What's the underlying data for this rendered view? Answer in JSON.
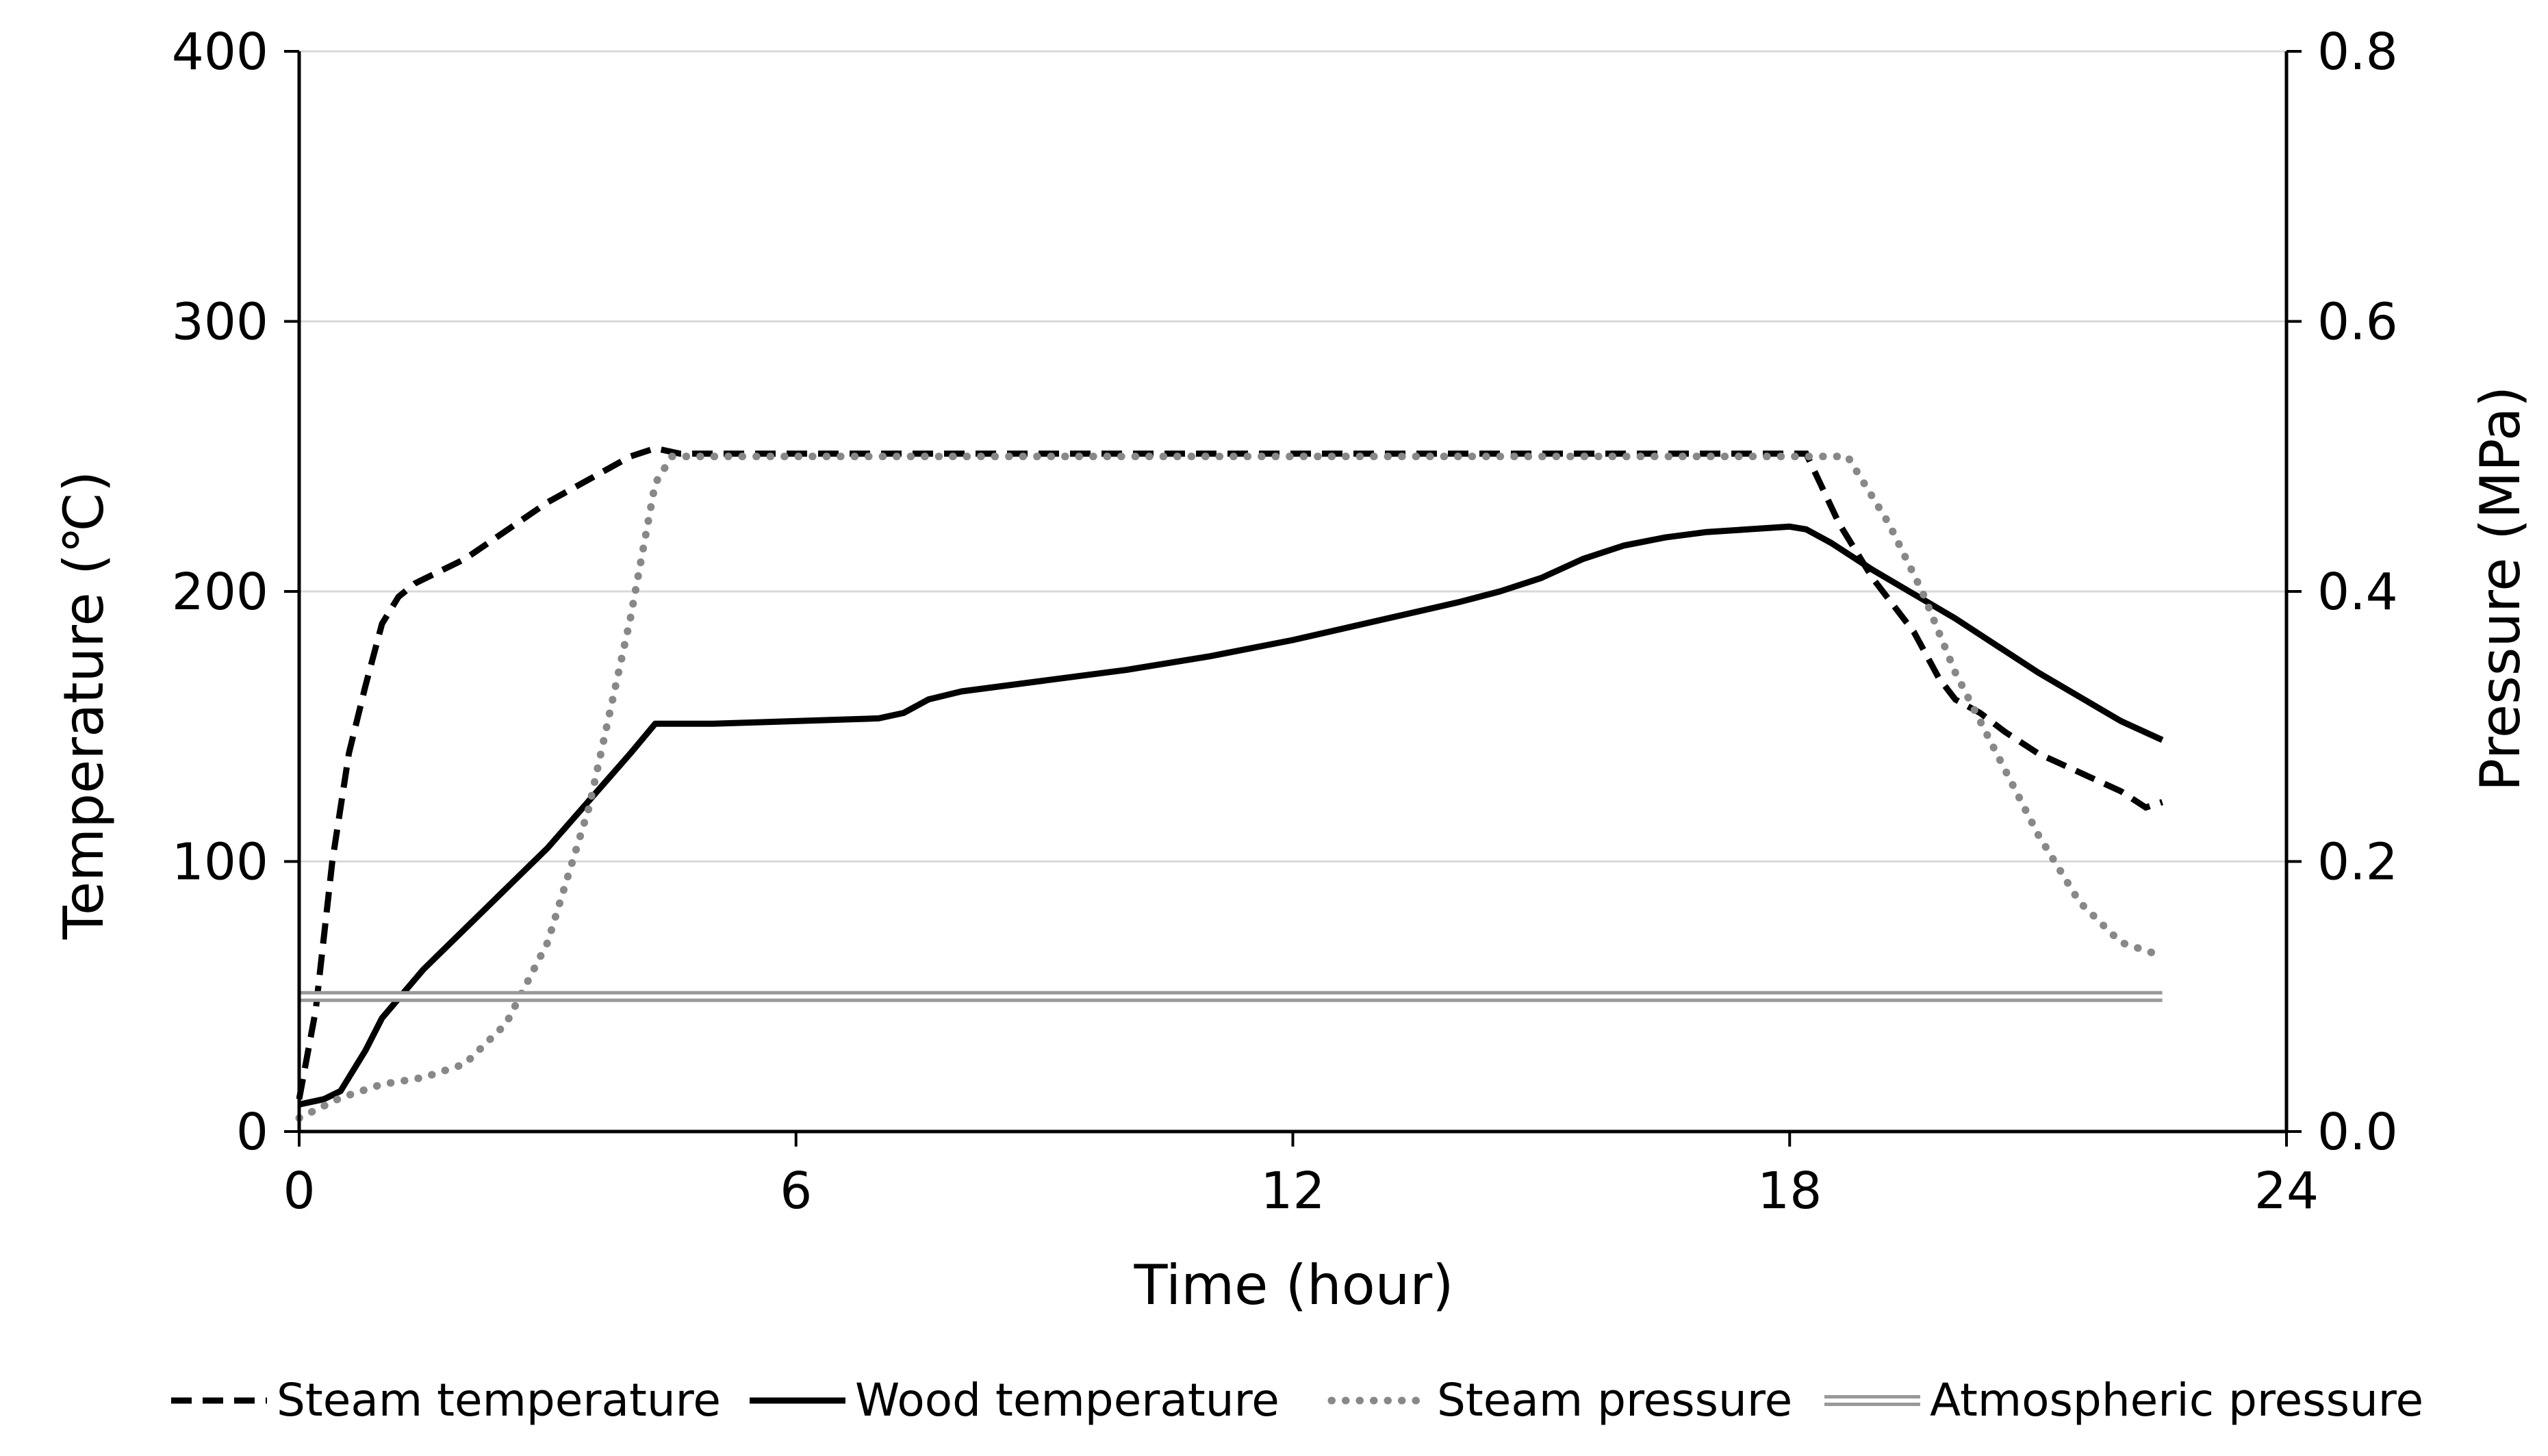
{
  "chart_data": {
    "type": "line",
    "title": "",
    "xlabel": "Time (hour)",
    "ylabel_left": "Temperature (℃)",
    "ylabel_right": "Pressure (MPa)",
    "xlim": [
      0,
      24
    ],
    "ylim_left": [
      0,
      400
    ],
    "ylim_right": [
      0,
      0.8
    ],
    "x_ticks": [
      "0",
      "6",
      "12",
      "18",
      "24"
    ],
    "y_left_ticks": [
      "0",
      "100",
      "200",
      "300",
      "400"
    ],
    "y_right_ticks": [
      "0.0",
      "0.2",
      "0.4",
      "0.6",
      "0.8"
    ],
    "grid": "horizontal",
    "legend_position": "bottom",
    "series": [
      {
        "name": "Steam temperature",
        "axis": "left",
        "style": "dashed",
        "color": "#000000",
        "points": [
          [
            0.0,
            12
          ],
          [
            0.2,
            45
          ],
          [
            0.4,
            100
          ],
          [
            0.6,
            140
          ],
          [
            0.8,
            165
          ],
          [
            1.0,
            188
          ],
          [
            1.2,
            198
          ],
          [
            1.4,
            203
          ],
          [
            2.0,
            212
          ],
          [
            3.0,
            233
          ],
          [
            4.0,
            250
          ],
          [
            4.3,
            253
          ],
          [
            4.6,
            251
          ],
          [
            6,
            251
          ],
          [
            10,
            251
          ],
          [
            14,
            251
          ],
          [
            17,
            251
          ],
          [
            18.2,
            251
          ],
          [
            18.6,
            225
          ],
          [
            19.0,
            205
          ],
          [
            19.5,
            185
          ],
          [
            19.8,
            168
          ],
          [
            20.0,
            160
          ],
          [
            20.3,
            155
          ],
          [
            20.6,
            148
          ],
          [
            21.0,
            140
          ],
          [
            21.5,
            133
          ],
          [
            22.0,
            126
          ],
          [
            22.3,
            120
          ],
          [
            22.5,
            122
          ]
        ]
      },
      {
        "name": "Wood temperature",
        "axis": "left",
        "style": "solid",
        "color": "#000000",
        "points": [
          [
            0.0,
            10
          ],
          [
            0.3,
            12
          ],
          [
            0.5,
            15
          ],
          [
            0.8,
            30
          ],
          [
            1.0,
            42
          ],
          [
            1.5,
            60
          ],
          [
            2.0,
            75
          ],
          [
            3.0,
            105
          ],
          [
            4.0,
            140
          ],
          [
            4.3,
            151
          ],
          [
            5,
            151
          ],
          [
            6,
            152
          ],
          [
            7,
            153
          ],
          [
            7.3,
            155
          ],
          [
            7.6,
            160
          ],
          [
            8,
            163
          ],
          [
            9,
            167
          ],
          [
            10,
            171
          ],
          [
            11,
            176
          ],
          [
            12,
            182
          ],
          [
            13,
            189
          ],
          [
            14,
            196
          ],
          [
            14.5,
            200
          ],
          [
            15,
            205
          ],
          [
            15.5,
            212
          ],
          [
            16,
            217
          ],
          [
            16.5,
            220
          ],
          [
            17,
            222
          ],
          [
            17.5,
            223
          ],
          [
            18.0,
            224
          ],
          [
            18.2,
            223
          ],
          [
            18.5,
            218
          ],
          [
            19,
            208
          ],
          [
            20,
            190
          ],
          [
            21,
            170
          ],
          [
            22,
            152
          ],
          [
            22.5,
            145
          ]
        ]
      },
      {
        "name": "Steam pressure",
        "axis": "right",
        "style": "dotted",
        "color": "#888888",
        "points": [
          [
            0.0,
            0.01
          ],
          [
            0.5,
            0.025
          ],
          [
            1.0,
            0.035
          ],
          [
            1.5,
            0.04
          ],
          [
            2.0,
            0.05
          ],
          [
            2.5,
            0.08
          ],
          [
            3.0,
            0.14
          ],
          [
            3.5,
            0.24
          ],
          [
            4.0,
            0.38
          ],
          [
            4.3,
            0.48
          ],
          [
            4.5,
            0.5
          ],
          [
            6,
            0.5
          ],
          [
            10,
            0.5
          ],
          [
            14,
            0.5
          ],
          [
            18,
            0.5
          ],
          [
            18.7,
            0.5
          ],
          [
            19.2,
            0.45
          ],
          [
            19.6,
            0.4
          ],
          [
            20.0,
            0.34
          ],
          [
            20.5,
            0.28
          ],
          [
            21.0,
            0.22
          ],
          [
            21.5,
            0.17
          ],
          [
            22.0,
            0.14
          ],
          [
            22.5,
            0.13
          ]
        ]
      },
      {
        "name": "Atmospheric pressure",
        "axis": "right",
        "style": "double",
        "color": "#999999",
        "points": [
          [
            0.0,
            0.1
          ],
          [
            22.5,
            0.1
          ]
        ]
      }
    ]
  }
}
